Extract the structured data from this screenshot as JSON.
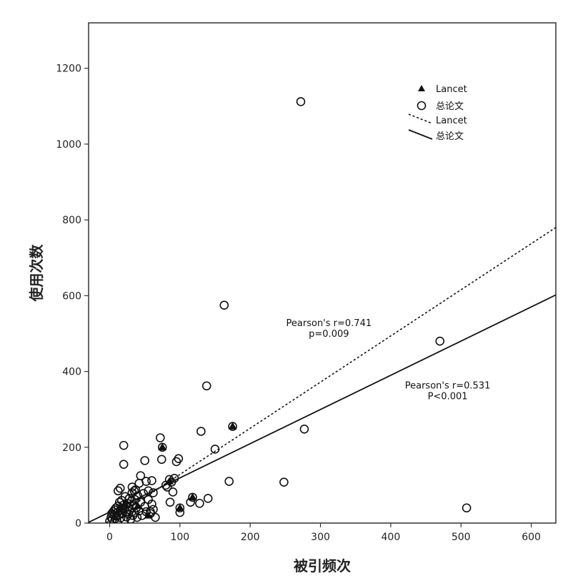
{
  "chart_data": {
    "type": "scatter",
    "title": "",
    "xlabel": "被引频次",
    "ylabel": "使用次数",
    "xlim": [
      -30,
      635
    ],
    "ylim": [
      0,
      1320
    ],
    "xticks": [
      0,
      100,
      200,
      300,
      400,
      500,
      600
    ],
    "yticks": [
      0,
      200,
      400,
      600,
      800,
      1000,
      1200
    ],
    "grid": false,
    "legend_position": "top-right",
    "legend": [
      {
        "label": "Lancet",
        "marker": "triangle"
      },
      {
        "label": "总论文",
        "marker": "circle"
      },
      {
        "label": "Lancet",
        "line": "dotted"
      },
      {
        "label": "总论文",
        "line": "solid"
      }
    ],
    "series": [
      {
        "name": "总论文",
        "marker": "circle",
        "points": [
          [
            0,
            5
          ],
          [
            2,
            15
          ],
          [
            3,
            25
          ],
          [
            4,
            10
          ],
          [
            5,
            30
          ],
          [
            6,
            20
          ],
          [
            7,
            35
          ],
          [
            8,
            12
          ],
          [
            9,
            40
          ],
          [
            10,
            18
          ],
          [
            11,
            28
          ],
          [
            12,
            45
          ],
          [
            13,
            22
          ],
          [
            14,
            55
          ],
          [
            15,
            33
          ],
          [
            16,
            14
          ],
          [
            17,
            60
          ],
          [
            18,
            25
          ],
          [
            19,
            38
          ],
          [
            20,
            48
          ],
          [
            21,
            8
          ],
          [
            22,
            70
          ],
          [
            23,
            30
          ],
          [
            24,
            16
          ],
          [
            25,
            52
          ],
          [
            26,
            42
          ],
          [
            27,
            24
          ],
          [
            28,
            65
          ],
          [
            29,
            35
          ],
          [
            30,
            10
          ],
          [
            31,
            58
          ],
          [
            32,
            80
          ],
          [
            33,
            20
          ],
          [
            34,
            46
          ],
          [
            35,
            28
          ],
          [
            36,
            62
          ],
          [
            37,
            88
          ],
          [
            38,
            40
          ],
          [
            39,
            15
          ],
          [
            40,
            72
          ],
          [
            42,
            32
          ],
          [
            44,
            55
          ],
          [
            46,
            20
          ],
          [
            48,
            78
          ],
          [
            50,
            44
          ],
          [
            52,
            30
          ],
          [
            55,
            62
          ],
          [
            58,
            25
          ],
          [
            60,
            50
          ],
          [
            62,
            36
          ],
          [
            15,
            92
          ],
          [
            12,
            85
          ],
          [
            20,
            155
          ],
          [
            20,
            205
          ],
          [
            28,
            65
          ],
          [
            32,
            95
          ],
          [
            35,
            85
          ],
          [
            38,
            40
          ],
          [
            42,
            105
          ],
          [
            44,
            125
          ],
          [
            50,
            165
          ],
          [
            52,
            110
          ],
          [
            55,
            85
          ],
          [
            58,
            30
          ],
          [
            60,
            112
          ],
          [
            62,
            80
          ],
          [
            65,
            15
          ],
          [
            72,
            225
          ],
          [
            74,
            168
          ],
          [
            75,
            200
          ],
          [
            80,
            100
          ],
          [
            82,
            95
          ],
          [
            85,
            115
          ],
          [
            86,
            55
          ],
          [
            88,
            108
          ],
          [
            90,
            82
          ],
          [
            92,
            118
          ],
          [
            95,
            162
          ],
          [
            98,
            170
          ],
          [
            100,
            28
          ],
          [
            100,
            40
          ],
          [
            115,
            55
          ],
          [
            118,
            68
          ],
          [
            128,
            52
          ],
          [
            130,
            242
          ],
          [
            138,
            362
          ],
          [
            140,
            65
          ],
          [
            150,
            195
          ],
          [
            163,
            575
          ],
          [
            170,
            110
          ],
          [
            175,
            255
          ],
          [
            248,
            108
          ],
          [
            272,
            1112
          ],
          [
            277,
            248
          ],
          [
            470,
            480
          ],
          [
            508,
            40
          ]
        ]
      },
      {
        "name": "Lancet",
        "marker": "triangle",
        "points": [
          [
            15,
            35
          ],
          [
            22,
            50
          ],
          [
            40,
            45
          ],
          [
            55,
            20
          ],
          [
            75,
            200
          ],
          [
            85,
            110
          ],
          [
            100,
            40
          ],
          [
            118,
            68
          ],
          [
            175,
            255
          ]
        ]
      }
    ],
    "fit_lines": [
      {
        "name": "Lancet",
        "style": "dotted",
        "x": [
          -30,
          635
        ],
        "y": [
          -30,
          780
        ]
      },
      {
        "name": "总论文",
        "style": "solid",
        "x": [
          -30,
          635
        ],
        "y": [
          2,
          602
        ]
      }
    ],
    "annotations": [
      {
        "lines": [
          "Pearson's r=0.741",
          "p=0.009"
        ],
        "x": 312,
        "y": 520
      },
      {
        "lines": [
          "Pearson's r=0.531",
          "P<0.001"
        ],
        "x": 481,
        "y": 355
      }
    ]
  }
}
